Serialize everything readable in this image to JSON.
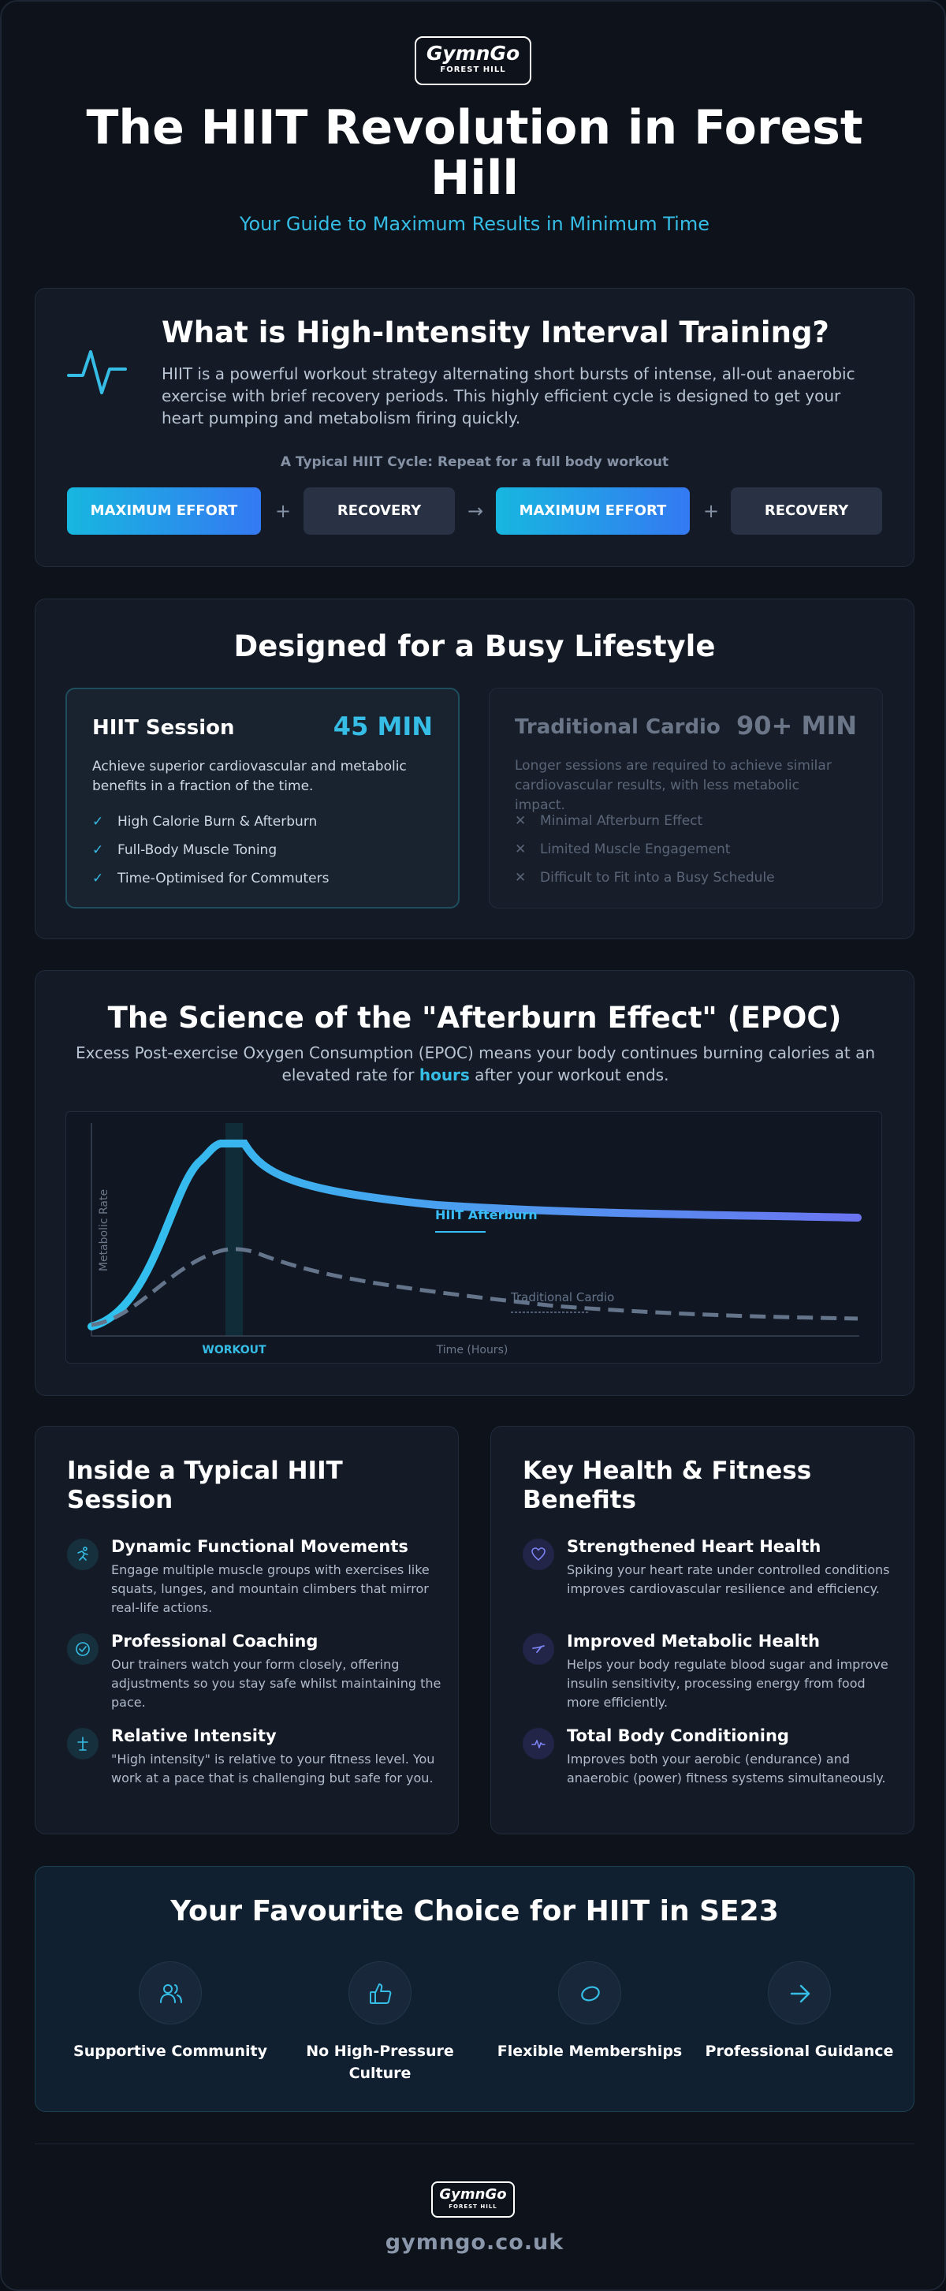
{
  "brand": {
    "name": "GymnGo",
    "location": "FOREST HILL"
  },
  "header": {
    "title": "The HIIT Revolution in Forest Hill",
    "subtitle": "Your Guide to Maximum Results in Minimum Time"
  },
  "intro": {
    "heading": "What is High-Intensity Interval Training?",
    "description": "HIIT is a powerful workout strategy alternating short bursts of intense, all-out anaerobic exercise with brief recovery periods. This highly efficient cycle is designed to get your heart pumping and metabolism firing quickly.",
    "cycle_label": "A Typical HIIT Cycle: Repeat for a full body workout",
    "cycle": [
      "MAXIMUM EFFORT",
      "+",
      "RECOVERY",
      "→",
      "MAXIMUM EFFORT",
      "+",
      "RECOVERY"
    ]
  },
  "lifestyle": {
    "heading": "Designed for a Busy Lifestyle",
    "hiit": {
      "name": "HIIT Session",
      "duration": "45 MIN",
      "description": "Achieve superior cardiovascular and metabolic benefits in a fraction of the time.",
      "points": [
        "High Calorie Burn & Afterburn",
        "Full-Body Muscle Toning",
        "Time-Optimised for Commuters"
      ]
    },
    "traditional": {
      "name": "Traditional Cardio",
      "duration": "90+ MIN",
      "description": "Longer sessions are required to achieve similar cardiovascular results, with less metabolic impact.",
      "points": [
        "Minimal Afterburn Effect",
        "Limited Muscle Engagement",
        "Difficult to Fit into a Busy Schedule"
      ]
    }
  },
  "epoc": {
    "heading": "The Science of the \"Afterburn Effect\" (EPOC)",
    "desc_before": "Excess Post-exercise Oxygen Consumption (EPOC) means your body continues burning calories at an elevated rate for ",
    "desc_highlight": "hours",
    "desc_after": " after your workout ends."
  },
  "chart_data": {
    "type": "line",
    "ylabel": "Metabolic Rate",
    "xlabel": "Time (Hours)",
    "region_label": "WORKOUT",
    "series": [
      {
        "name": "HIIT Afterburn",
        "color": "#38bdf8",
        "style": "solid"
      },
      {
        "name": "Traditional Cardio",
        "color": "#64748b",
        "style": "dashed"
      }
    ]
  },
  "session": {
    "heading": "Inside a Typical HIIT Session",
    "items": [
      {
        "icon": "running-icon",
        "title": "Dynamic Functional Movements",
        "desc": "Engage multiple muscle groups with exercises like squats, lunges, and mountain climbers that mirror real-life actions."
      },
      {
        "icon": "check-circle-icon",
        "title": "Professional Coaching",
        "desc": "Our trainers watch your form closely, offering adjustments so you stay safe whilst maintaining the pace."
      },
      {
        "icon": "figure-icon",
        "title": "Relative Intensity",
        "desc": "\"High intensity\" is relative to your fitness level. You work at a pace that is challenging but safe for you."
      }
    ]
  },
  "benefits": {
    "heading": "Key Health & Fitness Benefits",
    "items": [
      {
        "icon": "heart-icon",
        "title": "Strengthened Heart Health",
        "desc": "Spiking your heart rate under controlled conditions improves cardiovascular resilience and efficiency."
      },
      {
        "icon": "metabolism-icon",
        "title": "Improved Metabolic Health",
        "desc": "Helps your body regulate blood sugar and improve insulin sensitivity, processing energy from food more efficiently."
      },
      {
        "icon": "pulse-icon",
        "title": "Total Body Conditioning",
        "desc": "Improves both your aerobic (endurance) and anaerobic (power) fitness systems simultaneously."
      }
    ]
  },
  "choice": {
    "heading": "Your Favourite Choice for HIIT in SE23",
    "features": [
      {
        "icon": "users-icon",
        "label": "Supportive Community"
      },
      {
        "icon": "thumbs-up-icon",
        "label": "No High-Pressure Culture"
      },
      {
        "icon": "loop-icon",
        "label": "Flexible Memberships"
      },
      {
        "icon": "arrow-right-icon",
        "label": "Professional Guidance"
      }
    ]
  },
  "footer": {
    "website": "gymngo.co.uk"
  }
}
